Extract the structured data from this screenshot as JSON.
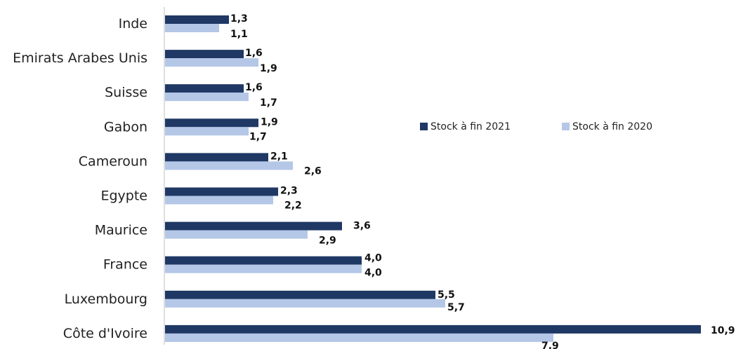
{
  "chart_data": {
    "type": "bar",
    "orientation": "horizontal",
    "categories": [
      "Inde",
      "Emirats Arabes Unis",
      "Suisse",
      "Gabon",
      "Cameroun",
      "Egypte",
      "Maurice",
      "France",
      "Luxembourg",
      "Côte d'Ivoire"
    ],
    "series": [
      {
        "name": "Stock à fin 2021",
        "color": "#1f3864",
        "values": [
          1.3,
          1.6,
          1.6,
          1.9,
          2.1,
          2.3,
          3.6,
          4.0,
          5.5,
          10.9
        ],
        "labels": [
          "1,3",
          "1,6",
          "1,6",
          "1,9",
          "2,1",
          "2,3",
          "3,6",
          "4,0",
          "5,5",
          "10,9"
        ]
      },
      {
        "name": "Stock à fin 2020",
        "color": "#b4c7e7",
        "values": [
          1.1,
          1.9,
          1.7,
          1.7,
          2.6,
          2.2,
          2.9,
          4.0,
          5.7,
          7.9
        ],
        "labels": [
          "1,1",
          "1,9",
          "1,7",
          "1,7",
          "2,6",
          "2,2",
          "2,9",
          "4,0",
          "5,7",
          "7,9"
        ]
      }
    ],
    "xlim": [
      0,
      11
    ],
    "grid": false,
    "legend": "right"
  }
}
